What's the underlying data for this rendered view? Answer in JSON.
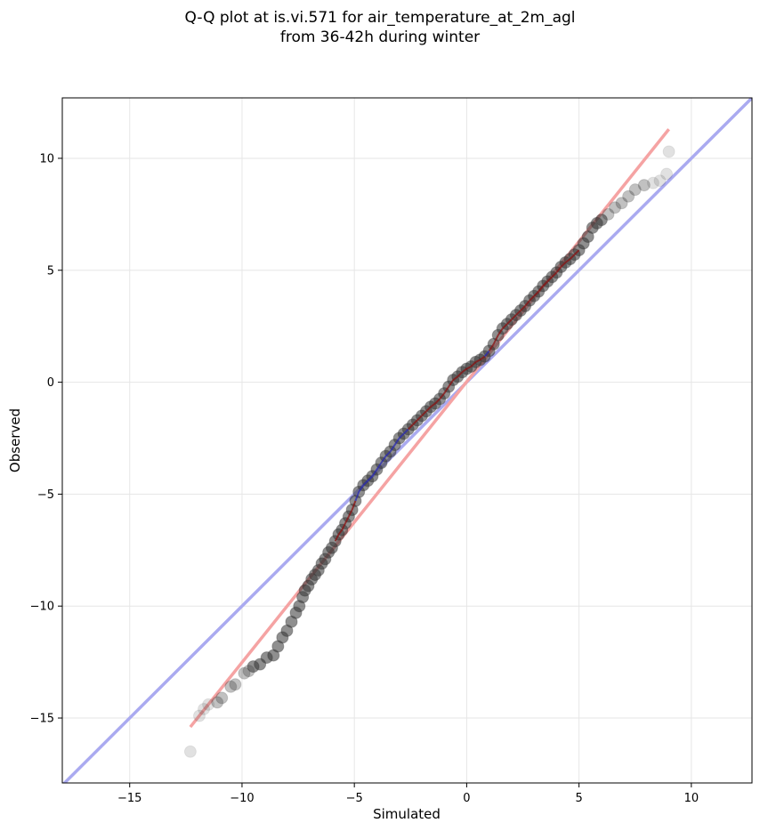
{
  "chart_data": {
    "type": "scatter",
    "title": "Q-Q plot at is.vi.571 for air_temperature_at_2m_agl",
    "subtitle": "from 36-42h during winter",
    "xlabel": "Simulated",
    "ylabel": "Observed",
    "xlim": [
      -18,
      12.7
    ],
    "ylim": [
      -17.9,
      12.7
    ],
    "xticks": [
      -15,
      -10,
      -5,
      0,
      5,
      10
    ],
    "yticks": [
      -15,
      -10,
      -5,
      0,
      5,
      10
    ],
    "xtick_labels": [
      "−15",
      "−10",
      "−5",
      "0",
      "5",
      "10"
    ],
    "ytick_labels": [
      "−15",
      "−10",
      "−5",
      "0",
      "5",
      "10"
    ],
    "grid": true,
    "colors": {
      "points": "#333333",
      "identity_line": "#aaaaf0",
      "fit_line": "#f5a3a3",
      "central_trace_blue": "#2a2ab0",
      "central_trace_red": "#8a1010"
    },
    "identity_line": {
      "x": [
        -18,
        12.7
      ],
      "y": [
        -18,
        12.7
      ]
    },
    "fit_line": {
      "x": [
        -12.3,
        9.0
      ],
      "y": [
        -15.4,
        11.3
      ]
    },
    "series": [
      {
        "x": [
          -12.3,
          -11.9,
          -11.7,
          -11.5,
          -11.1,
          -10.9,
          -10.5,
          -10.3,
          -9.9,
          -9.7,
          -9.5,
          -9.2,
          -8.9,
          -8.6,
          -8.4,
          -8.2,
          -8.0,
          -7.8,
          -7.6,
          -7.45,
          -7.3,
          -7.2,
          -7.05,
          -6.9,
          -6.75,
          -6.6,
          -6.45,
          -6.3,
          -6.15,
          -6.0,
          -5.85,
          -5.7,
          -5.55,
          -5.4,
          -5.25,
          -5.1,
          -4.95,
          -4.8,
          -4.6,
          -4.4,
          -4.2,
          -4.0,
          -3.8,
          -3.6,
          -3.4,
          -3.2,
          -3.0,
          -2.8,
          -2.6,
          -2.4,
          -2.2,
          -2.0,
          -1.8,
          -1.6,
          -1.4,
          -1.2,
          -1.0,
          -0.8,
          -0.6,
          -0.4,
          -0.2,
          0.0,
          0.2,
          0.4,
          0.6,
          0.8,
          1.0,
          1.2,
          1.4,
          1.6,
          1.8,
          2.0,
          2.2,
          2.4,
          2.6,
          2.8,
          3.0,
          3.2,
          3.4,
          3.6,
          3.8,
          4.0,
          4.2,
          4.4,
          4.6,
          4.8,
          5.0,
          5.2,
          5.4,
          5.6,
          5.8,
          6.0,
          6.3,
          6.6,
          6.9,
          7.2,
          7.5,
          7.9,
          8.3,
          8.6,
          8.9,
          9.0
        ],
        "y": [
          -16.5,
          -14.9,
          -14.6,
          -14.4,
          -14.3,
          -14.1,
          -13.6,
          -13.5,
          -13.0,
          -12.9,
          -12.7,
          -12.6,
          -12.3,
          -12.2,
          -11.8,
          -11.4,
          -11.1,
          -10.7,
          -10.3,
          -10.0,
          -9.6,
          -9.3,
          -9.1,
          -8.8,
          -8.6,
          -8.4,
          -8.1,
          -7.9,
          -7.6,
          -7.4,
          -7.1,
          -6.8,
          -6.6,
          -6.3,
          -6.0,
          -5.7,
          -5.3,
          -4.9,
          -4.6,
          -4.4,
          -4.2,
          -3.9,
          -3.6,
          -3.3,
          -3.1,
          -2.8,
          -2.5,
          -2.3,
          -2.1,
          -1.9,
          -1.7,
          -1.5,
          -1.3,
          -1.1,
          -0.95,
          -0.75,
          -0.5,
          -0.2,
          0.1,
          0.25,
          0.45,
          0.6,
          0.7,
          0.9,
          1.0,
          1.15,
          1.4,
          1.7,
          2.1,
          2.4,
          2.6,
          2.8,
          3.0,
          3.2,
          3.4,
          3.65,
          3.85,
          4.05,
          4.3,
          4.5,
          4.7,
          4.9,
          5.15,
          5.35,
          5.5,
          5.7,
          5.9,
          6.2,
          6.5,
          6.9,
          7.1,
          7.25,
          7.5,
          7.8,
          8.0,
          8.3,
          8.6,
          8.8,
          8.9,
          9.0,
          9.3,
          10.3
        ]
      }
    ]
  }
}
